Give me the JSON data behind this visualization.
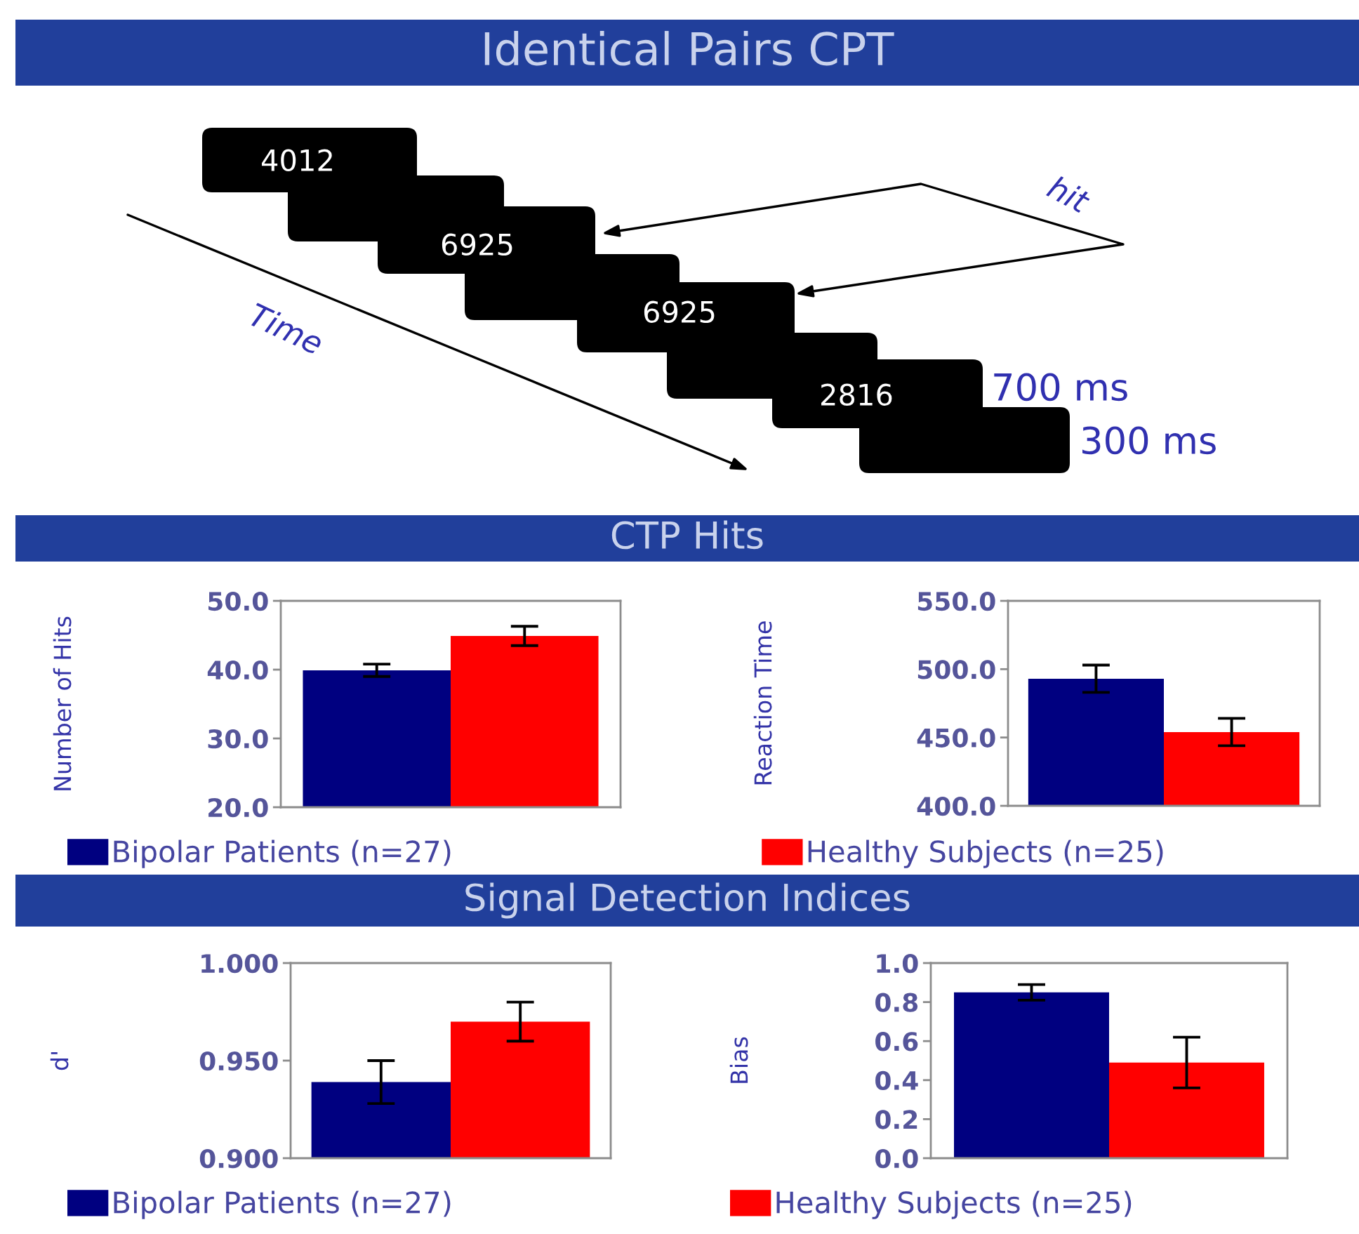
{
  "chart_data": [
    {
      "type": "other",
      "title": "Identical Pairs CPT",
      "annotations": [
        "4012",
        "6925",
        "6925",
        "2816",
        "hit",
        "Time",
        "700 ms",
        "300 ms"
      ]
    },
    {
      "type": "bar",
      "title": "CTP Hits",
      "ylabel": "Number of Hits",
      "categories": [
        null
      ],
      "series": [
        {
          "name": "Bipolar Patients (n=27)",
          "color": "#000080",
          "values": [
            39.9
          ],
          "errors": [
            0.9
          ]
        },
        {
          "name": "Healthy Subjects (n=25)",
          "color": "#ff0000",
          "values": [
            44.9
          ],
          "errors": [
            1.4
          ]
        }
      ],
      "ylim": [
        20,
        50
      ],
      "yticks": [
        {
          "value": 20,
          "label": "20.0"
        },
        {
          "value": 30,
          "label": "30.0"
        },
        {
          "value": 40,
          "label": "40.0"
        },
        {
          "value": 50,
          "label": "50.0"
        }
      ],
      "legend": "bottom"
    },
    {
      "type": "bar",
      "ylabel": "Reaction Time",
      "categories": [
        null
      ],
      "series": [
        {
          "color": "#000080",
          "values": [
            493
          ],
          "errors": [
            10
          ]
        },
        {
          "color": "#ff0000",
          "values": [
            454
          ],
          "errors": [
            10
          ]
        }
      ],
      "ylim": [
        400,
        550
      ],
      "yticks": [
        {
          "value": 400,
          "label": "400.0"
        },
        {
          "value": 450,
          "label": "450.0"
        },
        {
          "value": 500,
          "label": "500.0"
        },
        {
          "value": 550,
          "label": "550.0"
        }
      ]
    },
    {
      "type": "bar",
      "title": "Signal Detection Indices",
      "ylabel": "d'",
      "categories": [
        null
      ],
      "series": [
        {
          "name": "Bipolar Patients (n=27)",
          "color": "#000080",
          "values": [
            0.939
          ],
          "errors": [
            0.011
          ]
        },
        {
          "color": "#ff0000",
          "values": [
            0.97
          ],
          "errors": [
            0.01
          ]
        }
      ],
      "ylim": [
        0.9,
        1.0
      ],
      "yticks": [
        {
          "value": 0.9,
          "label": "0.900"
        },
        {
          "value": 0.95,
          "label": "0.950"
        },
        {
          "value": 1.0,
          "label": "1.000"
        }
      ],
      "legend": "bottom"
    },
    {
      "type": "bar",
      "ylabel": "Bias",
      "categories": [
        null
      ],
      "series": [
        {
          "color": "#000080",
          "values": [
            0.85
          ],
          "errors": [
            0.04
          ]
        },
        {
          "name": "Healthy Subjects (n=25)",
          "color": "#ff0000",
          "values": [
            0.49
          ],
          "errors": [
            0.13
          ]
        }
      ],
      "ylim": [
        0,
        1.0
      ],
      "yticks": [
        {
          "value": 0,
          "label": "0.0"
        },
        {
          "value": 0.2,
          "label": "0.2"
        },
        {
          "value": 0.4,
          "label": "0.4"
        },
        {
          "value": 0.6,
          "label": "0.6"
        },
        {
          "value": 0.8,
          "label": "0.8"
        },
        {
          "value": 1.0,
          "label": "1.0"
        }
      ],
      "legend": "bottom"
    }
  ]
}
